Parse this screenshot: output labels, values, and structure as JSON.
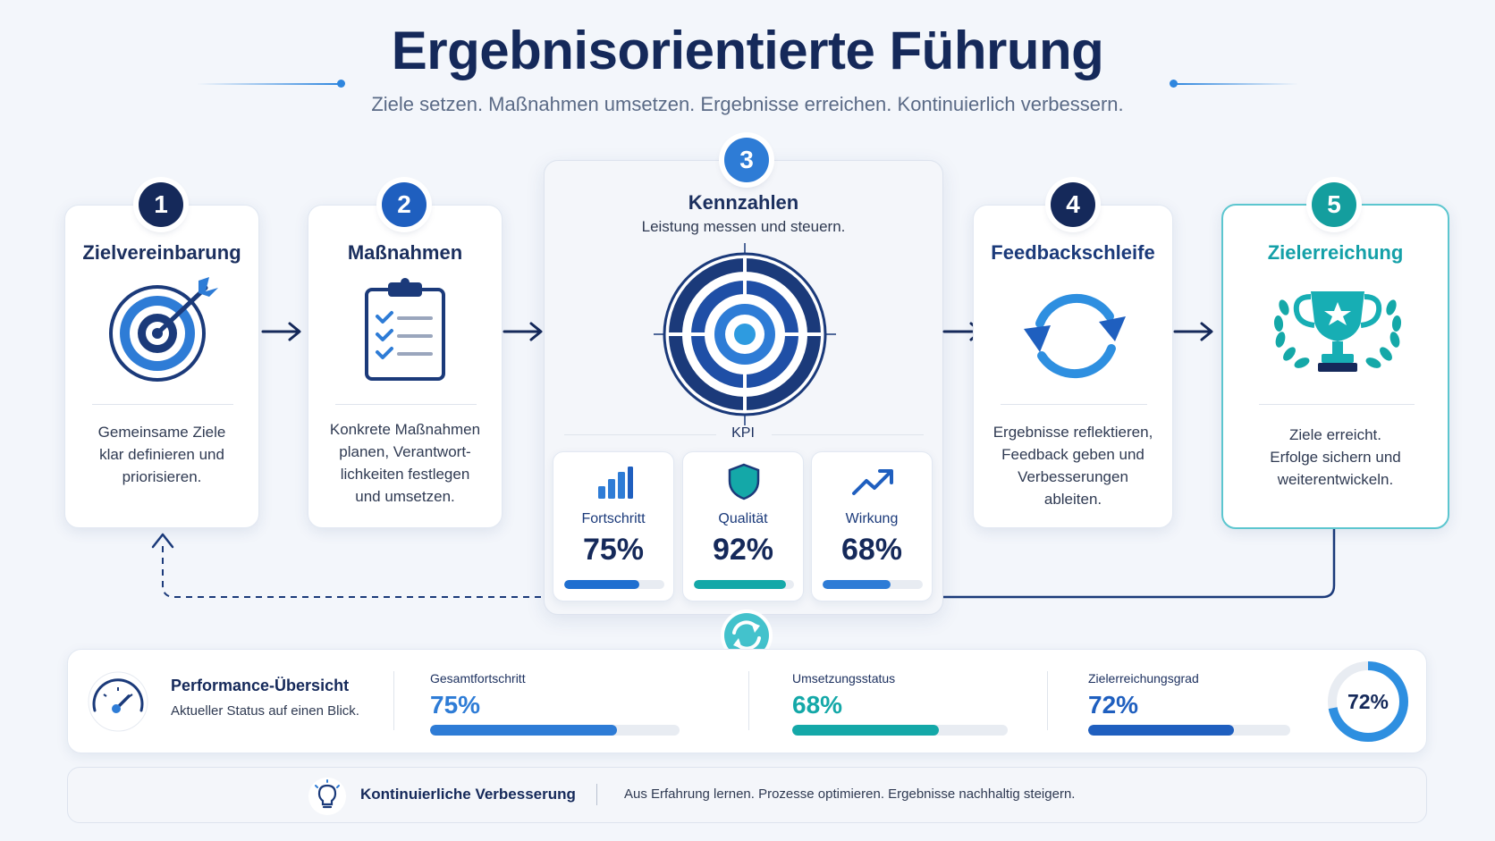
{
  "header": {
    "title": "Ergebnisorientierte Führung",
    "subtitle": "Ziele setzen. Maßnahmen umsetzen. Ergebnisse erreichen. Kontinuierlich verbessern."
  },
  "steps": [
    {
      "number": "1",
      "title": "Zielvereinbarung",
      "icon": "target-arrow-icon",
      "description": [
        "Gemeinsame Ziele",
        "klar definieren und",
        "priorisieren."
      ]
    },
    {
      "number": "2",
      "title": "Maßnahmen",
      "icon": "clipboard-checklist-icon",
      "description": [
        "Konkrete Maßnahmen",
        "planen, Verantwort-",
        "lichkeiten festlegen",
        "und umsetzen."
      ]
    },
    {
      "number": "3",
      "title": "Kennzahlen",
      "subtitle": "Leistung messen und steuern.",
      "icon": "bullseye-icon",
      "kpi_label": "KPI"
    },
    {
      "number": "4",
      "title": "Feedbackschleife",
      "icon": "refresh-cycle-icon",
      "description": [
        "Ergebnisse reflektieren,",
        "Feedback geben und",
        "Verbesserungen",
        "ableiten."
      ]
    },
    {
      "number": "5",
      "title": "Zielerreichung",
      "icon": "trophy-icon",
      "description": [
        "Ziele erreicht.",
        "Erfolge sichern und",
        "weiterentwickeln."
      ]
    }
  ],
  "kpis": [
    {
      "name": "Fortschritt",
      "value": "75%",
      "fill": 0.75,
      "icon": "bar-chart-icon"
    },
    {
      "name": "Qualität",
      "value": "92%",
      "fill": 0.92,
      "icon": "shield-icon"
    },
    {
      "name": "Wirkung",
      "value": "68%",
      "fill": 0.68,
      "icon": "trend-up-icon"
    }
  ],
  "performance": {
    "title": "Performance-Übersicht",
    "subtitle": "Aktueller Status auf einen Blick.",
    "metrics": [
      {
        "label": "Gesamtfortschritt",
        "value": "75%",
        "fill": 0.75
      },
      {
        "label": "Umsetzungsstatus",
        "value": "68%",
        "fill": 0.68
      },
      {
        "label": "Zielerreichungsgrad",
        "value": "72%",
        "fill": 0.72
      }
    ],
    "ring": {
      "value": "72%",
      "fill": 0.72
    }
  },
  "improvement": {
    "title": "Kontinuierliche Verbesserung",
    "text": "Aus Erfahrung lernen. Prozesse optimieren. Ergebnisse nachhaltig steigern."
  },
  "colors": {
    "navy": "#15295a",
    "blue": "#2e7cd6",
    "teal": "#14a8a8",
    "dark_blue": "#1f5fbf"
  }
}
